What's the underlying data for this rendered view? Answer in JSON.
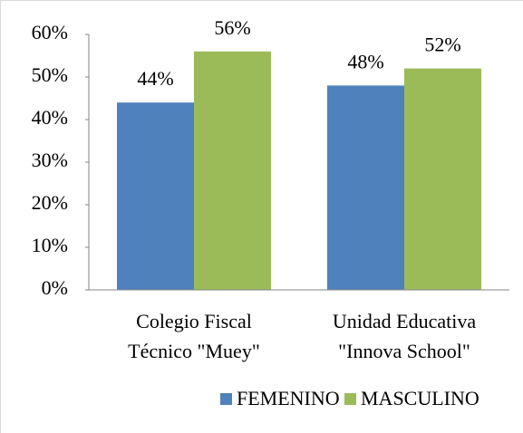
{
  "chart_data": {
    "type": "bar",
    "categories": [
      [
        "Colegio Fiscal",
        "Técnico \"Muey\""
      ],
      [
        "Unidad Educativa",
        "\"Innova School\""
      ]
    ],
    "series": [
      {
        "name": "FEMENINO",
        "color": "#4f81bd",
        "values": [
          44,
          48
        ],
        "value_labels": [
          "44%",
          "48%"
        ]
      },
      {
        "name": "MASCULINO",
        "color": "#9bbb59",
        "values": [
          56,
          52
        ],
        "value_labels": [
          "56%",
          "52%"
        ]
      }
    ],
    "ylim": [
      0,
      60
    ],
    "yticks": [
      {
        "value": 0,
        "label": "0%"
      },
      {
        "value": 10,
        "label": "10%"
      },
      {
        "value": 20,
        "label": "20%"
      },
      {
        "value": 30,
        "label": "30%"
      },
      {
        "value": 40,
        "label": "40%"
      },
      {
        "value": 50,
        "label": "50%"
      },
      {
        "value": 60,
        "label": "60%"
      }
    ],
    "legend": "bottom",
    "grid": false
  }
}
